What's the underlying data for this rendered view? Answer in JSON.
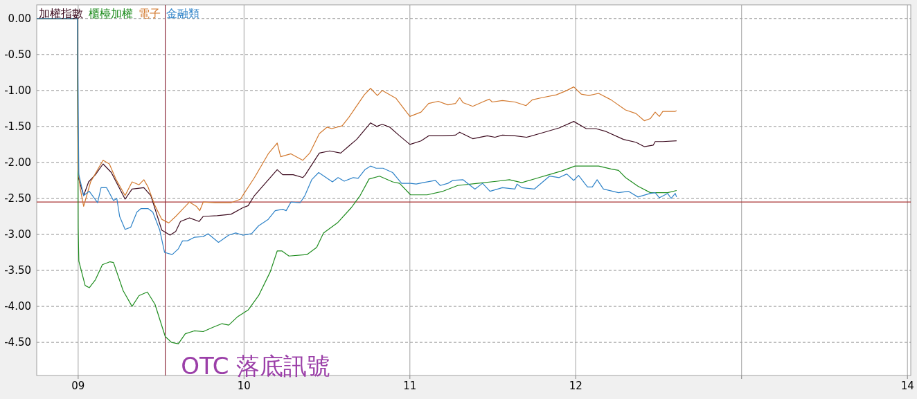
{
  "chart_data": {
    "type": "line",
    "xlim": [
      8.75,
      14.02
    ],
    "ylim": [
      -4.96,
      0.19
    ],
    "xticks": [
      {
        "value": 9,
        "label": "09"
      },
      10,
      11,
      12,
      {
        "value": 13,
        "label": null
      },
      14
    ],
    "yticks": [
      {
        "value": 0,
        "label": "0.00"
      },
      {
        "value": -0.5,
        "label": "-0.50"
      },
      {
        "value": -1,
        "label": "-1.00"
      },
      {
        "value": -1.5,
        "label": "-1.50"
      },
      {
        "value": -2,
        "label": "-2.00"
      },
      {
        "value": -2.5,
        "label": "-2.50"
      },
      {
        "value": -3,
        "label": "-3.00"
      },
      {
        "value": -3.5,
        "label": "-3.50"
      },
      {
        "value": -4,
        "label": "-4.00"
      },
      {
        "value": -4.5,
        "label": "-4.50"
      }
    ],
    "grid": true,
    "legend": "top left",
    "line_style": "solid",
    "marker": "none",
    "ref_lines": [
      {
        "axis": "y",
        "value": -2.55,
        "color": "#a83232"
      },
      {
        "axis": "x",
        "value": 9.525,
        "color": "#8c2a3a"
      }
    ],
    "annotations": [
      "OTC 落底訊號"
    ],
    "series": [
      {
        "name": "加權指數",
        "color": "#3c0a1e",
        "x": [
          8.75,
          8.995,
          9.0,
          9.033,
          9.063,
          9.104,
          9.15,
          9.2,
          9.283,
          9.325,
          9.396,
          9.438,
          9.504,
          9.554,
          9.588,
          9.617,
          9.671,
          9.729,
          9.754,
          9.838,
          9.921,
          9.992,
          10.025,
          10.063,
          10.2,
          10.233,
          10.296,
          10.354,
          10.367,
          10.454,
          10.517,
          10.583,
          10.633,
          10.679,
          10.763,
          10.8,
          10.833,
          10.879,
          10.933,
          11.0,
          11.067,
          11.113,
          11.2,
          11.275,
          11.3,
          11.379,
          11.467,
          11.513,
          11.558,
          11.633,
          11.704,
          11.796,
          11.9,
          11.988,
          12.063,
          12.121,
          12.183,
          12.288,
          12.363,
          12.413,
          12.467,
          12.479,
          12.525,
          12.608
        ],
        "values": [
          0,
          0,
          -2.2,
          -2.46,
          -2.27,
          -2.17,
          -2.02,
          -2.14,
          -2.51,
          -2.37,
          -2.35,
          -2.46,
          -2.94,
          -3.01,
          -2.96,
          -2.82,
          -2.77,
          -2.82,
          -2.75,
          -2.74,
          -2.72,
          -2.63,
          -2.6,
          -2.46,
          -2.1,
          -2.17,
          -2.17,
          -2.21,
          -2.18,
          -1.87,
          -1.84,
          -1.87,
          -1.77,
          -1.68,
          -1.45,
          -1.5,
          -1.47,
          -1.51,
          -1.62,
          -1.75,
          -1.7,
          -1.63,
          -1.63,
          -1.62,
          -1.58,
          -1.67,
          -1.63,
          -1.65,
          -1.62,
          -1.63,
          -1.65,
          -1.59,
          -1.52,
          -1.43,
          -1.53,
          -1.53,
          -1.57,
          -1.68,
          -1.72,
          -1.78,
          -1.76,
          -1.71,
          -1.71,
          -1.7
        ]
      },
      {
        "name": "櫃檯加權",
        "color": "#1e8c1e",
        "x": [
          8.75,
          8.995,
          9.0,
          9.004,
          9.042,
          9.067,
          9.104,
          9.146,
          9.192,
          9.213,
          9.271,
          9.325,
          9.367,
          9.417,
          9.463,
          9.525,
          9.563,
          9.604,
          9.646,
          9.7,
          9.754,
          9.813,
          9.867,
          9.908,
          9.963,
          10.025,
          10.088,
          10.158,
          10.2,
          10.229,
          10.271,
          10.379,
          10.438,
          10.479,
          10.563,
          10.646,
          10.7,
          10.754,
          10.817,
          10.896,
          10.938,
          11.004,
          11.104,
          11.2,
          11.288,
          11.408,
          11.529,
          11.6,
          11.675,
          11.779,
          11.913,
          11.996,
          12.05,
          12.138,
          12.213,
          12.258,
          12.3,
          12.375,
          12.45,
          12.554,
          12.608
        ],
        "values": [
          0,
          0,
          -2.91,
          -3.37,
          -3.71,
          -3.74,
          -3.63,
          -3.42,
          -3.38,
          -3.39,
          -3.78,
          -4.0,
          -3.85,
          -3.8,
          -3.97,
          -4.42,
          -4.5,
          -4.52,
          -4.38,
          -4.34,
          -4.35,
          -4.29,
          -4.24,
          -4.26,
          -4.14,
          -4.05,
          -3.85,
          -3.52,
          -3.23,
          -3.23,
          -3.3,
          -3.28,
          -3.18,
          -2.98,
          -2.84,
          -2.63,
          -2.46,
          -2.23,
          -2.19,
          -2.27,
          -2.29,
          -2.45,
          -2.45,
          -2.4,
          -2.32,
          -2.29,
          -2.26,
          -2.24,
          -2.28,
          -2.21,
          -2.12,
          -2.05,
          -2.05,
          -2.05,
          -2.09,
          -2.11,
          -2.21,
          -2.33,
          -2.42,
          -2.42,
          -2.39
        ]
      },
      {
        "name": "電子",
        "color": "#d2782d",
        "x": [
          8.75,
          8.995,
          9.0,
          9.013,
          9.033,
          9.075,
          9.15,
          9.188,
          9.229,
          9.283,
          9.325,
          9.367,
          9.396,
          9.421,
          9.463,
          9.504,
          9.546,
          9.588,
          9.629,
          9.671,
          9.713,
          9.733,
          9.754,
          9.825,
          9.921,
          9.979,
          9.992,
          10.063,
          10.146,
          10.2,
          10.221,
          10.283,
          10.354,
          10.396,
          10.454,
          10.5,
          10.529,
          10.592,
          10.633,
          10.725,
          10.763,
          10.804,
          10.833,
          10.871,
          10.917,
          10.963,
          11.0,
          11.067,
          11.113,
          11.171,
          11.229,
          11.275,
          11.3,
          11.321,
          11.379,
          11.438,
          11.479,
          11.496,
          11.558,
          11.633,
          11.7,
          11.738,
          11.796,
          11.883,
          11.946,
          11.988,
          12.033,
          12.079,
          12.138,
          12.213,
          12.3,
          12.363,
          12.413,
          12.45,
          12.479,
          12.504,
          12.525,
          12.6,
          12.608
        ],
        "values": [
          0,
          0,
          -2.1,
          -2.37,
          -2.61,
          -2.27,
          -1.97,
          -2.02,
          -2.24,
          -2.46,
          -2.27,
          -2.31,
          -2.24,
          -2.34,
          -2.6,
          -2.79,
          -2.84,
          -2.75,
          -2.65,
          -2.55,
          -2.61,
          -2.67,
          -2.55,
          -2.56,
          -2.56,
          -2.51,
          -2.46,
          -2.21,
          -1.88,
          -1.73,
          -1.92,
          -1.88,
          -1.97,
          -1.87,
          -1.6,
          -1.51,
          -1.53,
          -1.49,
          -1.37,
          -1.06,
          -0.97,
          -1.07,
          -1.0,
          -1.05,
          -1.11,
          -1.25,
          -1.36,
          -1.3,
          -1.18,
          -1.15,
          -1.2,
          -1.18,
          -1.1,
          -1.17,
          -1.22,
          -1.16,
          -1.12,
          -1.16,
          -1.14,
          -1.16,
          -1.21,
          -1.13,
          -1.1,
          -1.06,
          -1.0,
          -0.95,
          -1.05,
          -1.07,
          -1.04,
          -1.13,
          -1.27,
          -1.32,
          -1.42,
          -1.39,
          -1.3,
          -1.36,
          -1.29,
          -1.29,
          -1.28
        ]
      },
      {
        "name": "金融類",
        "color": "#2d82c8",
        "x": [
          8.75,
          8.995,
          9.004,
          9.033,
          9.067,
          9.117,
          9.138,
          9.171,
          9.213,
          9.233,
          9.25,
          9.283,
          9.317,
          9.354,
          9.379,
          9.421,
          9.45,
          9.492,
          9.521,
          9.567,
          9.604,
          9.629,
          9.658,
          9.7,
          9.754,
          9.783,
          9.846,
          9.908,
          9.95,
          9.992,
          10.046,
          10.088,
          10.146,
          10.188,
          10.233,
          10.254,
          10.283,
          10.338,
          10.367,
          10.408,
          10.45,
          10.533,
          10.567,
          10.604,
          10.658,
          10.688,
          10.729,
          10.763,
          10.796,
          10.838,
          10.896,
          10.95,
          11.004,
          11.038,
          11.079,
          11.154,
          11.183,
          11.229,
          11.258,
          11.321,
          11.392,
          11.438,
          11.483,
          11.558,
          11.633,
          11.646,
          11.675,
          11.75,
          11.842,
          11.9,
          11.946,
          11.988,
          12.017,
          12.071,
          12.1,
          12.129,
          12.167,
          12.258,
          12.317,
          12.375,
          12.45,
          12.479,
          12.504,
          12.554,
          12.575,
          12.6,
          12.608
        ],
        "values": [
          0,
          0,
          -2.17,
          -2.46,
          -2.4,
          -2.56,
          -2.35,
          -2.35,
          -2.53,
          -2.5,
          -2.75,
          -2.93,
          -2.9,
          -2.69,
          -2.64,
          -2.64,
          -2.69,
          -2.94,
          -3.25,
          -3.28,
          -3.2,
          -3.09,
          -3.09,
          -3.04,
          -3.03,
          -2.99,
          -3.11,
          -3.01,
          -2.98,
          -3.01,
          -2.99,
          -2.88,
          -2.79,
          -2.67,
          -2.65,
          -2.67,
          -2.55,
          -2.56,
          -2.46,
          -2.24,
          -2.14,
          -2.27,
          -2.21,
          -2.26,
          -2.21,
          -2.22,
          -2.1,
          -2.05,
          -2.08,
          -2.08,
          -2.14,
          -2.29,
          -2.29,
          -2.3,
          -2.28,
          -2.25,
          -2.32,
          -2.29,
          -2.25,
          -2.24,
          -2.37,
          -2.29,
          -2.4,
          -2.35,
          -2.37,
          -2.3,
          -2.35,
          -2.37,
          -2.19,
          -2.21,
          -2.16,
          -2.25,
          -2.18,
          -2.34,
          -2.34,
          -2.24,
          -2.37,
          -2.42,
          -2.4,
          -2.48,
          -2.43,
          -2.42,
          -2.49,
          -2.43,
          -2.5,
          -2.43,
          -2.48
        ]
      }
    ]
  }
}
